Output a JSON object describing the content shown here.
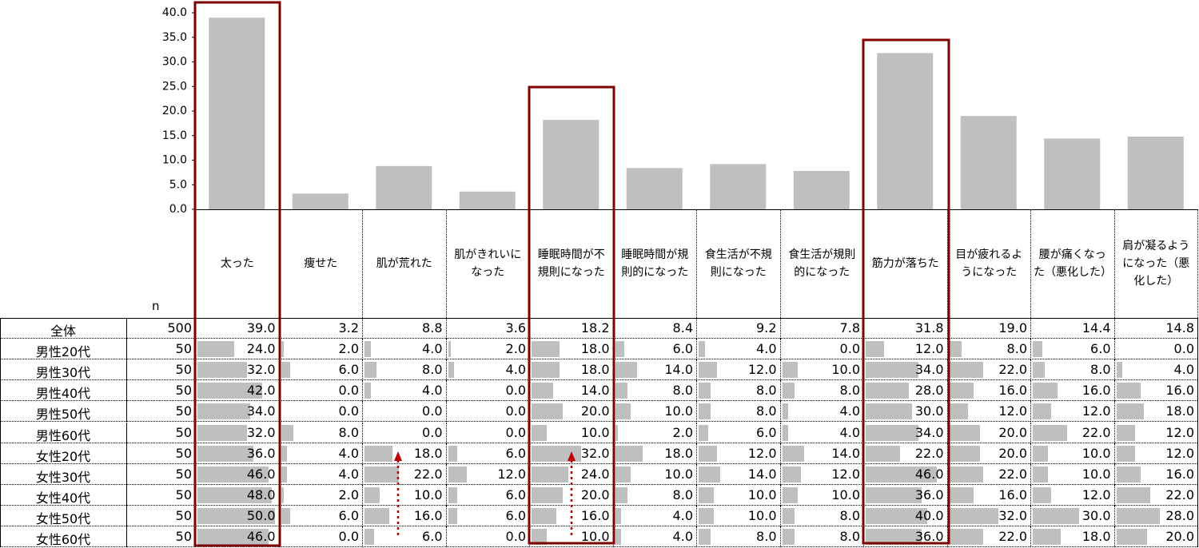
{
  "chart_data": {
    "type": "bar",
    "color": "#bfbfbf",
    "categories": [
      "太った",
      "痩せた",
      "肌が荒れた",
      "肌がきれいになった",
      "睡眠時間が不規則になった",
      "睡眠時間が規則的になった",
      "食生活が不規則になった",
      "食生活が規則的になった",
      "筋力が落ちた",
      "目が疲れるようになった",
      "腰が痛くなった（悪化した）",
      "肩が凝るようになった（悪化した）"
    ],
    "values": [
      39.0,
      3.2,
      8.8,
      3.6,
      18.2,
      8.4,
      9.2,
      7.8,
      31.8,
      19.0,
      14.4,
      14.8
    ],
    "value_labels": [
      "39.0",
      "3.2",
      "8.8",
      "3.6",
      "18.2",
      "8.4",
      "9.2",
      "7.8",
      "31.8",
      "19.0",
      "14.4",
      "14.8"
    ],
    "ylim": [
      0,
      40
    ],
    "yticks": [
      {
        "value": 0,
        "label": "0.0"
      },
      {
        "value": 5,
        "label": "5.0"
      },
      {
        "value": 10,
        "label": "10.0"
      },
      {
        "value": 15,
        "label": "15.0"
      },
      {
        "value": 20,
        "label": "20.0"
      },
      {
        "value": 25,
        "label": "25.0"
      },
      {
        "value": 30,
        "label": "30.0"
      },
      {
        "value": 35,
        "label": "35.0"
      },
      {
        "value": 40,
        "label": "40.0"
      }
    ]
  },
  "table": {
    "n_label": "n",
    "total": {
      "label": "全体",
      "n": 500
    },
    "rows": [
      {
        "label": "男性20代",
        "n": 50,
        "values": [
          24,
          2,
          4,
          2,
          18,
          6,
          4,
          0,
          12,
          8,
          6,
          0
        ],
        "value_labels": [
          "24.0",
          "2.0",
          "4.0",
          "2.0",
          "18.0",
          "6.0",
          "4.0",
          "0.0",
          "12.0",
          "8.0",
          "6.0",
          "0.0"
        ]
      },
      {
        "label": "男性30代",
        "n": 50,
        "values": [
          32,
          6,
          8,
          4,
          18,
          14,
          12,
          10,
          34,
          22,
          8,
          4
        ],
        "value_labels": [
          "32.0",
          "6.0",
          "8.0",
          "4.0",
          "18.0",
          "14.0",
          "12.0",
          "10.0",
          "34.0",
          "22.0",
          "8.0",
          "4.0"
        ]
      },
      {
        "label": "男性40代",
        "n": 50,
        "values": [
          42,
          0,
          4,
          0,
          14,
          8,
          8,
          8,
          28,
          16,
          16,
          16
        ],
        "value_labels": [
          "42.0",
          "0.0",
          "4.0",
          "0.0",
          "14.0",
          "8.0",
          "8.0",
          "8.0",
          "28.0",
          "16.0",
          "16.0",
          "16.0"
        ]
      },
      {
        "label": "男性50代",
        "n": 50,
        "values": [
          34,
          0,
          0,
          0,
          20,
          10,
          8,
          4,
          30,
          12,
          12,
          18
        ],
        "value_labels": [
          "34.0",
          "0.0",
          "0.0",
          "0.0",
          "20.0",
          "10.0",
          "8.0",
          "4.0",
          "30.0",
          "12.0",
          "12.0",
          "18.0"
        ]
      },
      {
        "label": "男性60代",
        "n": 50,
        "values": [
          32,
          8,
          0,
          0,
          10,
          2,
          6,
          4,
          34,
          20,
          22,
          12
        ],
        "value_labels": [
          "32.0",
          "8.0",
          "0.0",
          "0.0",
          "10.0",
          "2.0",
          "6.0",
          "4.0",
          "34.0",
          "20.0",
          "22.0",
          "12.0"
        ]
      },
      {
        "label": "女性20代",
        "n": 50,
        "values": [
          36,
          4,
          18,
          6,
          32,
          18,
          12,
          14,
          22,
          20,
          10,
          12
        ],
        "value_labels": [
          "36.0",
          "4.0",
          "18.0",
          "6.0",
          "32.0",
          "18.0",
          "12.0",
          "14.0",
          "22.0",
          "20.0",
          "10.0",
          "12.0"
        ]
      },
      {
        "label": "女性30代",
        "n": 50,
        "values": [
          46,
          4,
          22,
          12,
          24,
          10,
          14,
          12,
          46,
          22,
          10,
          16
        ],
        "value_labels": [
          "46.0",
          "4.0",
          "22.0",
          "12.0",
          "24.0",
          "10.0",
          "14.0",
          "12.0",
          "46.0",
          "22.0",
          "10.0",
          "16.0"
        ]
      },
      {
        "label": "女性40代",
        "n": 50,
        "values": [
          48,
          2,
          10,
          6,
          20,
          8,
          10,
          10,
          36,
          16,
          12,
          22
        ],
        "value_labels": [
          "48.0",
          "2.0",
          "10.0",
          "6.0",
          "20.0",
          "8.0",
          "10.0",
          "10.0",
          "36.0",
          "16.0",
          "12.0",
          "22.0"
        ]
      },
      {
        "label": "女性50代",
        "n": 50,
        "values": [
          50,
          6,
          16,
          6,
          16,
          4,
          10,
          8,
          40,
          32,
          30,
          28
        ],
        "value_labels": [
          "50.0",
          "6.0",
          "16.0",
          "6.0",
          "16.0",
          "4.0",
          "10.0",
          "8.0",
          "40.0",
          "32.0",
          "30.0",
          "28.0"
        ]
      },
      {
        "label": "女性60代",
        "n": 50,
        "values": [
          46,
          0,
          6,
          0,
          10,
          4,
          8,
          8,
          36,
          22,
          18,
          20
        ],
        "value_labels": [
          "46.0",
          "0.0",
          "6.0",
          "0.0",
          "10.0",
          "4.0",
          "8.0",
          "8.0",
          "36.0",
          "22.0",
          "18.0",
          "20.0"
        ]
      }
    ]
  }
}
